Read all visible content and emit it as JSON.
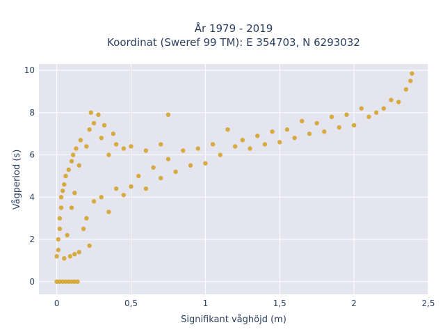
{
  "chart_data": {
    "type": "scatter",
    "title_lines": [
      "År 1979 - 2019",
      "Koordinat (Sweref 99 TM): E 354703, N 6293032"
    ],
    "xlabel": "Signifikant våghöjd (m)",
    "ylabel": "Vågperiod (s)",
    "xlim": [
      -0.12,
      2.5
    ],
    "ylim": [
      -0.6,
      10.3
    ],
    "x_ticks": [
      0,
      0.5,
      1,
      1.5,
      2,
      2.5
    ],
    "x_tick_labels": [
      "0",
      "0,5",
      "1",
      "1,5",
      "2",
      "2,5"
    ],
    "y_ticks": [
      0,
      2,
      4,
      6,
      8,
      10
    ],
    "y_tick_labels": [
      "0",
      "2",
      "4",
      "6",
      "8",
      "10"
    ],
    "grid": true,
    "marker_color": "#D4A020",
    "plot_background": "#E5E5F0",
    "series": [
      {
        "points": [
          [
            0.0,
            1.2
          ],
          [
            0.01,
            1.5
          ],
          [
            0.01,
            2.0
          ],
          [
            0.02,
            2.5
          ],
          [
            0.02,
            3.0
          ],
          [
            0.03,
            3.5
          ],
          [
            0.03,
            4.0
          ],
          [
            0.04,
            4.3
          ],
          [
            0.05,
            1.1
          ],
          [
            0.05,
            4.6
          ],
          [
            0.06,
            5.0
          ],
          [
            0.07,
            2.2
          ],
          [
            0.08,
            5.3
          ],
          [
            0.09,
            1.2
          ],
          [
            0.1,
            3.5
          ],
          [
            0.1,
            5.7
          ],
          [
            0.11,
            6.0
          ],
          [
            0.12,
            1.3
          ],
          [
            0.12,
            4.2
          ],
          [
            0.13,
            6.3
          ],
          [
            0.15,
            1.4
          ],
          [
            0.15,
            5.5
          ],
          [
            0.16,
            6.7
          ],
          [
            0.18,
            2.5
          ],
          [
            0.2,
            3.0
          ],
          [
            0.2,
            6.4
          ],
          [
            0.22,
            1.7
          ],
          [
            0.22,
            7.2
          ],
          [
            0.23,
            8.0
          ],
          [
            0.25,
            3.8
          ],
          [
            0.25,
            7.5
          ],
          [
            0.28,
            7.9
          ],
          [
            0.3,
            4.0
          ],
          [
            0.3,
            6.8
          ],
          [
            0.32,
            7.4
          ],
          [
            0.35,
            3.3
          ],
          [
            0.35,
            6.0
          ],
          [
            0.38,
            7.0
          ],
          [
            0.4,
            4.4
          ],
          [
            0.4,
            6.5
          ],
          [
            0.45,
            4.1
          ],
          [
            0.45,
            6.3
          ],
          [
            0.5,
            4.5
          ],
          [
            0.5,
            6.4
          ],
          [
            0.55,
            5.0
          ],
          [
            0.6,
            4.4
          ],
          [
            0.6,
            6.2
          ],
          [
            0.65,
            5.4
          ],
          [
            0.7,
            4.9
          ],
          [
            0.7,
            6.5
          ],
          [
            0.75,
            7.9
          ],
          [
            0.75,
            5.8
          ],
          [
            0.8,
            5.2
          ],
          [
            0.85,
            6.2
          ],
          [
            0.9,
            5.5
          ],
          [
            0.95,
            6.3
          ],
          [
            1.0,
            5.6
          ],
          [
            1.05,
            6.5
          ],
          [
            1.1,
            6.0
          ],
          [
            1.15,
            7.2
          ],
          [
            1.2,
            6.4
          ],
          [
            1.25,
            6.7
          ],
          [
            1.3,
            6.3
          ],
          [
            1.35,
            6.9
          ],
          [
            1.4,
            6.5
          ],
          [
            1.45,
            7.1
          ],
          [
            1.5,
            6.6
          ],
          [
            1.55,
            7.2
          ],
          [
            1.6,
            6.8
          ],
          [
            1.65,
            7.6
          ],
          [
            1.7,
            7.0
          ],
          [
            1.75,
            7.5
          ],
          [
            1.8,
            7.1
          ],
          [
            1.85,
            7.8
          ],
          [
            1.9,
            7.3
          ],
          [
            1.95,
            7.9
          ],
          [
            2.0,
            7.4
          ],
          [
            2.05,
            8.2
          ],
          [
            2.1,
            7.8
          ],
          [
            2.15,
            8.0
          ],
          [
            2.2,
            8.2
          ],
          [
            2.25,
            8.6
          ],
          [
            2.3,
            8.5
          ],
          [
            2.35,
            9.1
          ],
          [
            2.38,
            9.5
          ],
          [
            2.39,
            9.85
          ],
          [
            0.0,
            0.0
          ],
          [
            0.02,
            0.0
          ],
          [
            0.04,
            0.0
          ],
          [
            0.06,
            0.0
          ],
          [
            0.08,
            0.0
          ],
          [
            0.1,
            0.0
          ],
          [
            0.12,
            0.0
          ],
          [
            0.14,
            0.0
          ]
        ]
      }
    ]
  }
}
